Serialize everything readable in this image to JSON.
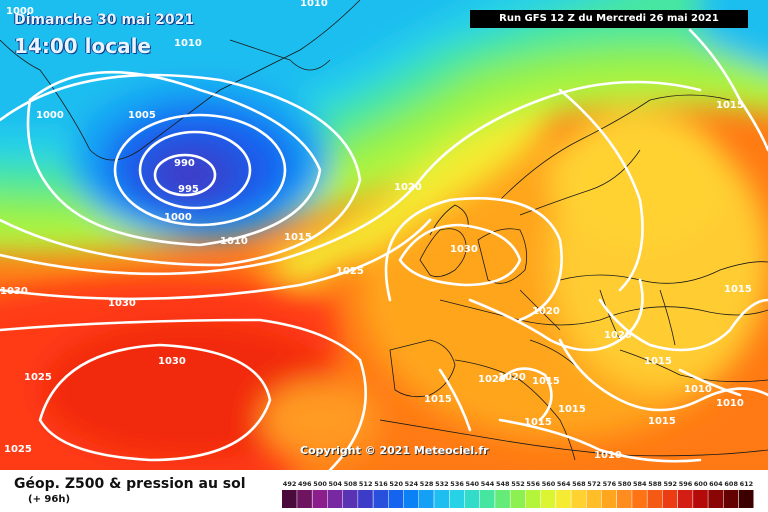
{
  "header": {
    "date_label": "Dimanche 30 mai 2021",
    "time_label": "14:00 locale",
    "run_label": "Run GFS 12 Z du Mercredi 26 mai 2021"
  },
  "copyright": "Copyright © 2021 Meteociel.fr",
  "legend": {
    "title": "Géop. Z500 & pression au sol",
    "subtitle": "(+ 96h)",
    "scale_values": [
      "492",
      "496",
      "500",
      "504",
      "508",
      "512",
      "516",
      "520",
      "524",
      "528",
      "532",
      "536",
      "540",
      "544",
      "548",
      "552",
      "556",
      "560",
      "564",
      "568",
      "572",
      "576",
      "580",
      "584",
      "588",
      "592",
      "596",
      "600",
      "604",
      "608",
      "612"
    ],
    "scale_colors": [
      "#4b0a3c",
      "#6e1460",
      "#8c1e8c",
      "#7828a0",
      "#5a32b4",
      "#3c3cc8",
      "#2850dc",
      "#1464f0",
      "#0a82f5",
      "#14a0f5",
      "#1ebef0",
      "#28d2e6",
      "#32dcc8",
      "#46e6a0",
      "#64eb78",
      "#8cf050",
      "#b4f53c",
      "#dcf532",
      "#f5eb32",
      "#ffd232",
      "#ffbe28",
      "#ffa51e",
      "#ff8c1e",
      "#ff7314",
      "#f55a14",
      "#eb3c14",
      "#d21e14",
      "#b40a0a",
      "#8c0505",
      "#640202",
      "#3c0000"
    ]
  },
  "isobars": [
    {
      "value": "1010",
      "at": "Greenland coast top"
    },
    {
      "value": "1000",
      "at": "top-left corner"
    },
    {
      "value": "1010",
      "at": "top centre"
    },
    {
      "value": "1010",
      "at": "Greenland east"
    },
    {
      "value": "1005",
      "at": "south of Greenland"
    },
    {
      "value": "1000",
      "at": "Greenland west coast"
    },
    {
      "value": "990",
      "at": "low centre"
    },
    {
      "value": "995",
      "at": "low centre"
    },
    {
      "value": "1000",
      "at": "south of low"
    },
    {
      "value": "1010",
      "at": "south of low"
    },
    {
      "value": "1015",
      "at": "mid Atlantic"
    },
    {
      "value": "1020",
      "at": "north of British Isles"
    },
    {
      "value": "1025",
      "at": "mid Atlantic"
    },
    {
      "value": "1030",
      "at": "British Isles high"
    },
    {
      "value": "1030",
      "at": "west Atlantic"
    },
    {
      "value": "1030",
      "at": "left edge"
    },
    {
      "value": "1030",
      "at": "Azores high"
    },
    {
      "value": "1025",
      "at": "lower left"
    },
    {
      "value": "1025",
      "at": "bottom left"
    },
    {
      "value": "1015",
      "at": "NE Europe"
    },
    {
      "value": "1015",
      "at": "right edge"
    },
    {
      "value": "1020",
      "at": "central Europe"
    },
    {
      "value": "1020",
      "at": "Balkans"
    },
    {
      "value": "1015",
      "at": "Balkans"
    },
    {
      "value": "1010",
      "at": "Turkey"
    },
    {
      "value": "1010",
      "at": "SE corner"
    },
    {
      "value": "1020",
      "at": "Gulf of Lion"
    },
    {
      "value": "1020",
      "at": "Gulf of Lion"
    },
    {
      "value": "1015",
      "at": "Italy"
    },
    {
      "value": "1015",
      "at": "Spain"
    },
    {
      "value": "1015",
      "at": "Mediterranean"
    },
    {
      "value": "1015",
      "at": "Mediterranean south"
    },
    {
      "value": "1015",
      "at": "Greece"
    },
    {
      "value": "1010",
      "at": "North Africa"
    }
  ]
}
